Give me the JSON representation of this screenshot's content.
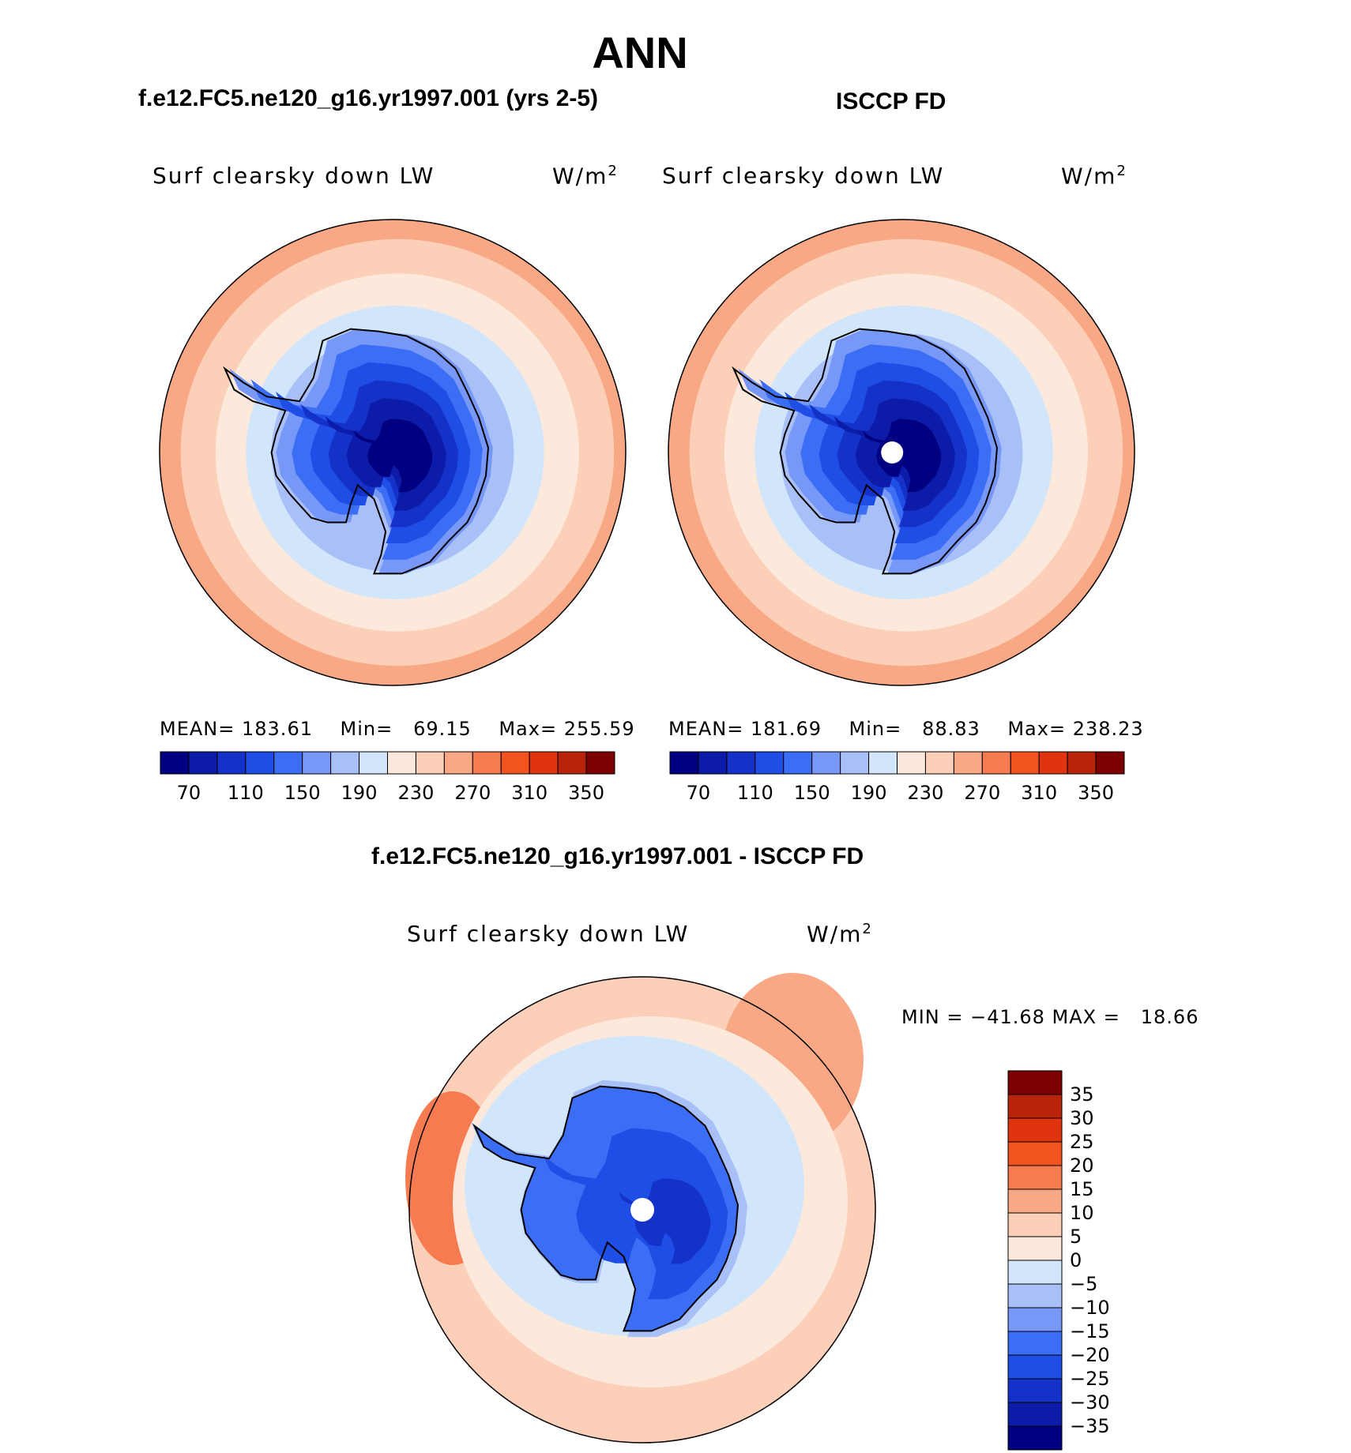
{
  "chart_data": {
    "type": "polar-contour-map",
    "title": "ANN",
    "colors": {
      "abs_scale": [
        "#000080",
        "#0c1ca8",
        "#1432c8",
        "#1e4ee6",
        "#3c6ef5",
        "#7898f7",
        "#a8c0f7",
        "#d2e6fb",
        "#fde9dc",
        "#fbcfb8",
        "#f8a884",
        "#f77b50",
        "#f3531f",
        "#e03410",
        "#b8240a",
        "#7d0000"
      ],
      "diff_scale": [
        "#000080",
        "#0c1ca8",
        "#1432c8",
        "#1e4ee6",
        "#3c6ef5",
        "#7898f7",
        "#a8c0f7",
        "#d2e6fb",
        "#fde9dc",
        "#fbcfb8",
        "#f8a884",
        "#f77b50",
        "#f3531f",
        "#e03410",
        "#b8240a",
        "#7d0000"
      ],
      "missing": "#ffffff",
      "coast": "#000000"
    },
    "panels": [
      {
        "id": "model",
        "title": "f.e12.FC5.ne120_g16.yr1997.001 (yrs 2-5)",
        "variable": "Surf clearsky down LW",
        "units": "W/m",
        "units_sup": "2",
        "mean_label": "MEAN=",
        "mean": "183.61",
        "min_label": "Min=",
        "min": "69.15",
        "max_label": "Max=",
        "max": "255.59",
        "levels": [
          "70",
          "110",
          "150",
          "190",
          "230",
          "270",
          "310",
          "350"
        ],
        "rings": [
          5,
          5,
          5,
          5,
          5,
          4,
          3,
          2,
          1,
          0,
          0,
          -1,
          -1,
          -3
        ]
      },
      {
        "id": "obs",
        "title": "ISCCP FD",
        "variable": "Surf clearsky down LW",
        "units": "W/m",
        "units_sup": "2",
        "mean_label": "MEAN=",
        "mean": "181.69",
        "min_label": "Min=",
        "min": "88.83",
        "max_label": "Max=",
        "max": "238.23",
        "levels": [
          "70",
          "110",
          "150",
          "190",
          "230",
          "270",
          "310",
          "350"
        ],
        "rings": [
          5,
          5,
          5,
          5,
          4,
          4,
          3,
          2,
          1,
          0,
          0,
          -1,
          -2,
          -3
        ]
      },
      {
        "id": "diff",
        "title": "f.e12.FC5.ne120_g16.yr1997.001 - ISCCP FD",
        "variable": "Surf clearsky down LW",
        "units": "W/m",
        "units_sup": "2",
        "minmax_label": "MIN = −41.68 MAX =",
        "max": "18.66",
        "levels": [
          "35",
          "30",
          "25",
          "20",
          "15",
          "10",
          "5",
          "0",
          "−5",
          "−10",
          "−15",
          "−20",
          "−25",
          "−30",
          "−35"
        ]
      }
    ]
  }
}
